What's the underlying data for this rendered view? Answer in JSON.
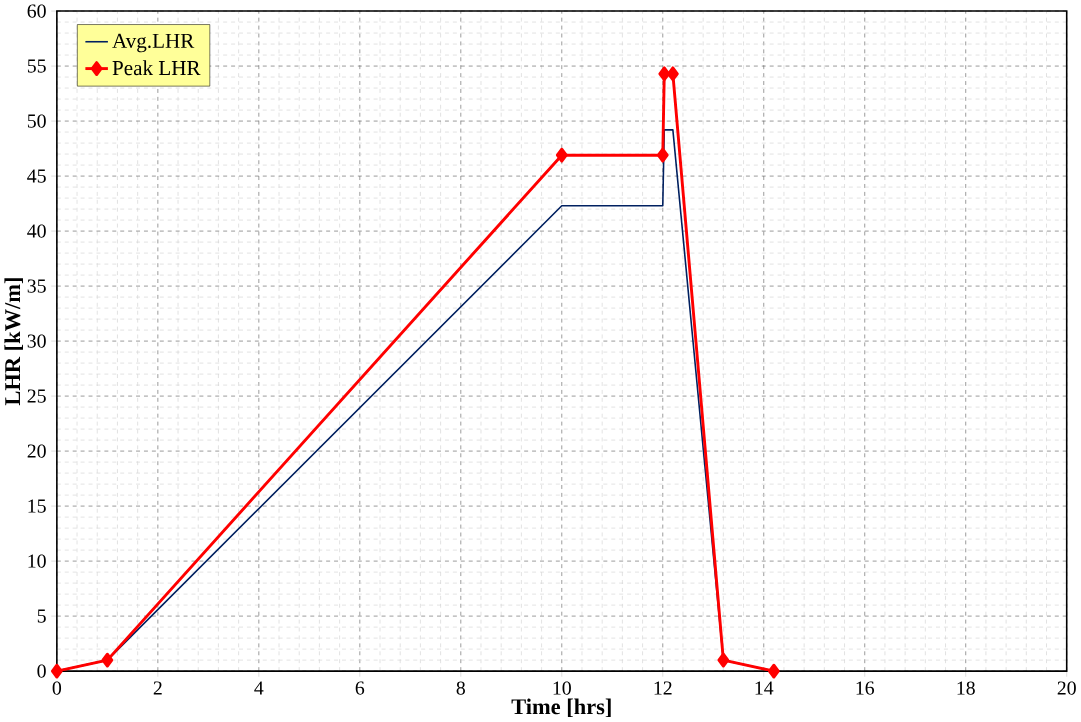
{
  "chart_data": {
    "type": "line",
    "xlabel": "Time [hrs]",
    "ylabel": "LHR [kW/m]",
    "xlim": [
      0,
      20
    ],
    "ylim": [
      0,
      60
    ],
    "xticks": [
      0,
      2,
      4,
      6,
      8,
      10,
      12,
      14,
      16,
      18,
      20
    ],
    "yticks": [
      0,
      5,
      10,
      15,
      20,
      25,
      30,
      35,
      40,
      45,
      50,
      55,
      60
    ],
    "grid": true,
    "legend": "top left",
    "series": [
      {
        "name": "Avg.LHR",
        "color": "#002060",
        "marker": "none",
        "x": [
          0,
          1,
          10,
          12,
          12.03,
          12.2,
          13.2,
          14.2
        ],
        "values": [
          0,
          1,
          42.3,
          42.3,
          49.2,
          49.2,
          1,
          0
        ]
      },
      {
        "name": "Peak LHR",
        "color": "#ff0000",
        "marker": "diamond",
        "x": [
          0,
          1,
          10,
          12,
          12.03,
          12.2,
          13.2,
          14.2
        ],
        "values": [
          0,
          1,
          46.9,
          46.9,
          54.3,
          54.3,
          1,
          0
        ]
      }
    ]
  }
}
